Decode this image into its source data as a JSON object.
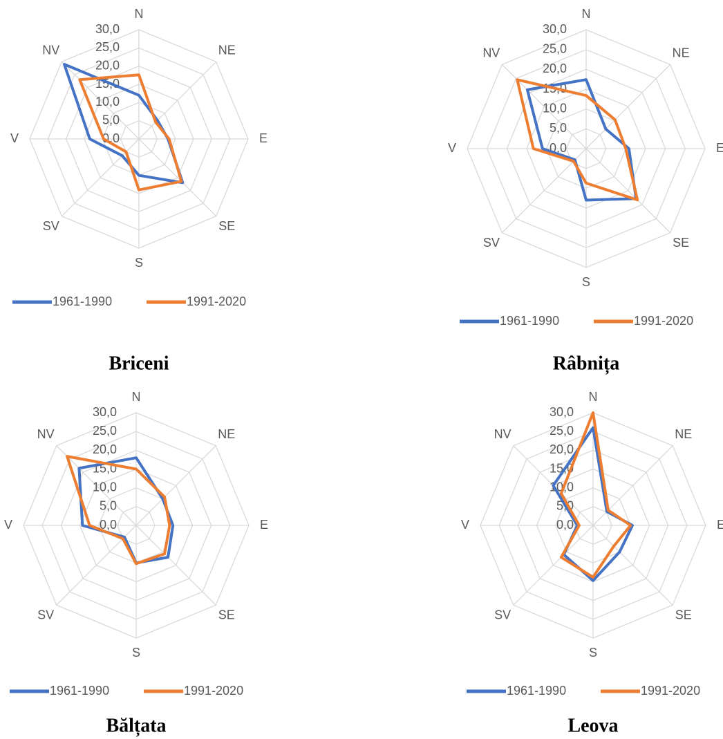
{
  "chart_data": [
    {
      "type": "radar",
      "title": "Briceni",
      "categories": [
        "N",
        "NE",
        "E",
        "SE",
        "S",
        "SV",
        "V",
        "NV"
      ],
      "rlim": [
        0,
        30
      ],
      "rticks": [
        {
          "value": 0,
          "label": "0,0"
        },
        {
          "value": 5,
          "label": "5,0"
        },
        {
          "value": 10,
          "label": "10,0"
        },
        {
          "value": 15,
          "label": "15,0"
        },
        {
          "value": 20,
          "label": "20,0"
        },
        {
          "value": 25,
          "label": "25,0"
        },
        {
          "value": 30,
          "label": "30,0"
        }
      ],
      "series": [
        {
          "name": "1961-1990",
          "color": "#4472c4",
          "values": [
            12,
            7.2,
            8,
            17,
            10,
            6.5,
            13.5,
            29
          ]
        },
        {
          "name": "1991-2020",
          "color": "#ed7d31",
          "values": [
            17.6,
            6.5,
            8.3,
            16.5,
            14,
            5,
            9.7,
            23
          ]
        }
      ]
    },
    {
      "type": "radar",
      "title": "Râbnița",
      "categories": [
        "N",
        "NE",
        "E",
        "SE",
        "S",
        "SV",
        "V",
        "NV"
      ],
      "rlim": [
        0,
        30
      ],
      "rticks": [
        {
          "value": 0,
          "label": "0,0"
        },
        {
          "value": 5,
          "label": "5,0"
        },
        {
          "value": 10,
          "label": "10,0"
        },
        {
          "value": 15,
          "label": "15,0"
        },
        {
          "value": 20,
          "label": "20,0"
        },
        {
          "value": 25,
          "label": "25,0"
        },
        {
          "value": 30,
          "label": "30,0"
        }
      ],
      "series": [
        {
          "name": "1961-1990",
          "color": "#4472c4",
          "values": [
            17.4,
            7,
            10.8,
            17.8,
            13,
            4,
            11,
            21
          ]
        },
        {
          "name": "1991-2020",
          "color": "#ed7d31",
          "values": [
            13.4,
            10.3,
            10,
            18.3,
            8.7,
            4.5,
            13.3,
            24.6
          ]
        }
      ]
    },
    {
      "type": "radar",
      "title": "Bălțata",
      "categories": [
        "N",
        "NE",
        "E",
        "SE",
        "S",
        "SV",
        "V",
        "NV"
      ],
      "rlim": [
        0,
        30
      ],
      "rticks": [
        {
          "value": 0,
          "label": "0,0"
        },
        {
          "value": 5,
          "label": "5,0"
        },
        {
          "value": 10,
          "label": "10,0"
        },
        {
          "value": 15,
          "label": "15,0"
        },
        {
          "value": 20,
          "label": "20,0"
        },
        {
          "value": 25,
          "label": "25,0"
        },
        {
          "value": 30,
          "label": "30,0"
        }
      ],
      "series": [
        {
          "name": "1961-1990",
          "color": "#4472c4",
          "values": [
            18,
            10,
            9.8,
            12,
            10,
            4.4,
            14.3,
            21.5
          ]
        },
        {
          "name": "1991-2020",
          "color": "#ed7d31",
          "values": [
            15,
            10.7,
            8.9,
            10.7,
            10.2,
            5,
            12.4,
            26
          ]
        }
      ]
    },
    {
      "type": "radar",
      "title": "Leova",
      "categories": [
        "N",
        "NE",
        "E",
        "SE",
        "S",
        "SV",
        "V",
        "NV"
      ],
      "rlim": [
        0,
        30
      ],
      "rticks": [
        {
          "value": 0,
          "label": "0,0"
        },
        {
          "value": 5,
          "label": "5,0"
        },
        {
          "value": 10,
          "label": "10,0"
        },
        {
          "value": 15,
          "label": "15,0"
        },
        {
          "value": 20,
          "label": "20,0"
        },
        {
          "value": 25,
          "label": "25,0"
        },
        {
          "value": 30,
          "label": "30,0"
        }
      ],
      "series": [
        {
          "name": "1961-1990",
          "color": "#4472c4",
          "values": [
            26,
            5.2,
            10.5,
            10,
            14.7,
            11,
            4.2,
            15
          ]
        },
        {
          "name": "1991-2020",
          "color": "#ed7d31",
          "values": [
            30,
            5.7,
            10,
            7.8,
            13.8,
            12,
            3.7,
            12
          ]
        }
      ]
    }
  ]
}
